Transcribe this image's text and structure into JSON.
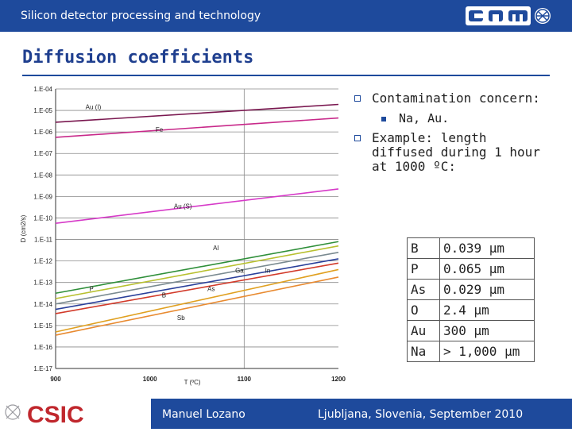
{
  "header": {
    "title": "Silicon detector processing and technology",
    "logo": "CNM"
  },
  "slide": {
    "title": "Diffusion coefficients"
  },
  "bullets": {
    "b1": "Contamination concern:",
    "b1_sub": "Na, Au.",
    "b2_lines": [
      "Example: length",
      "diffused during 1 hour",
      "at 1000 ºC:"
    ]
  },
  "table": [
    {
      "element": "B",
      "value": "0.039 µm"
    },
    {
      "element": "P",
      "value": "0.065 µm"
    },
    {
      "element": "As",
      "value": "0.029 µm"
    },
    {
      "element": "O",
      "value": "2.4 µm"
    },
    {
      "element": "Au",
      "value": "300 µm"
    },
    {
      "element": "Na",
      "value": "> 1,000 µm"
    }
  ],
  "footer": {
    "logo": "CSIC",
    "presenter": "Manuel Lozano",
    "place": "Ljubljana, Slovenia, September 2010"
  },
  "colors": {
    "brand_blue": "#1e4a9c",
    "csic_red": "#c0272d"
  },
  "chart_data": {
    "type": "line",
    "xlabel": "T (ºC)",
    "ylabel": "D (cm2/s)",
    "x_ticks": [
      900,
      1000,
      1100,
      1200
    ],
    "x_tick_labels": [
      "900",
      "1000",
      "1100",
      "1200"
    ],
    "y_tick_labels": [
      "1.E-04",
      "1.E-05",
      "1.E-06",
      "1.E-07",
      "1.E-08",
      "1.E-09",
      "1.E-10",
      "1.E-11",
      "1.E-12",
      "1.E-13",
      "1.E-14",
      "1.E-15",
      "1.E-16",
      "1.E-17"
    ],
    "y_log_exponents": [
      -4,
      -5,
      -6,
      -7,
      -8,
      -9,
      -10,
      -11,
      -12,
      -13,
      -14,
      -15,
      -16,
      -17
    ],
    "xlim": [
      900,
      1200
    ],
    "ylim_log": [
      -17,
      -4
    ],
    "series": [
      {
        "name": "Au (I)",
        "x": [
          900,
          1200
        ],
        "y_log": [
          -5.55,
          -4.72
        ],
        "color": "#7a1850"
      },
      {
        "name": "Fe",
        "x": [
          900,
          1200
        ],
        "y_log": [
          -6.25,
          -5.35
        ],
        "color": "#c8298a"
      },
      {
        "name": "Au (S)",
        "x": [
          900,
          1200
        ],
        "y_log": [
          -10.25,
          -8.65
        ],
        "color": "#d63ac8"
      },
      {
        "name": "Al",
        "x": [
          900,
          1200
        ],
        "y_log": [
          -13.5,
          -11.1
        ],
        "color": "#2f8f3a"
      },
      {
        "name": "Ga",
        "x": [
          900,
          1200
        ],
        "y_log": [
          -13.75,
          -11.3
        ],
        "color": "#b8c030"
      },
      {
        "name": "In",
        "x": [
          900,
          1200
        ],
        "y_log": [
          -14.0,
          -11.6
        ],
        "color": "#7a8a90"
      },
      {
        "name": "P",
        "x": [
          900,
          1200
        ],
        "y_log": [
          -14.25,
          -11.9
        ],
        "color": "#2a3f9a"
      },
      {
        "name": "B",
        "x": [
          900,
          1200
        ],
        "y_log": [
          -14.45,
          -12.1
        ],
        "color": "#d23a2a"
      },
      {
        "name": "As",
        "x": [
          900,
          1200
        ],
        "y_log": [
          -15.3,
          -12.4
        ],
        "color": "#e0a020"
      },
      {
        "name": "Sb",
        "x": [
          900,
          1200
        ],
        "y_log": [
          -15.45,
          -12.75
        ],
        "color": "#e88a30"
      }
    ],
    "labels": [
      {
        "text": "Au (I)",
        "x": 940,
        "y_log": -4.95
      },
      {
        "text": "Fe",
        "x": 1010,
        "y_log": -6.0
      },
      {
        "text": "Au (S)",
        "x": 1035,
        "y_log": -9.55
      },
      {
        "text": "Al",
        "x": 1070,
        "y_log": -11.5
      },
      {
        "text": "Ga",
        "x": 1095,
        "y_log": -12.55
      },
      {
        "text": "In",
        "x": 1125,
        "y_log": -12.55
      },
      {
        "text": "As",
        "x": 1065,
        "y_log": -13.4
      },
      {
        "text": "P",
        "x": 938,
        "y_log": -13.4
      },
      {
        "text": "B",
        "x": 1015,
        "y_log": -13.7
      },
      {
        "text": "Sb",
        "x": 1033,
        "y_log": -14.75
      }
    ],
    "grid": "vertical-at-1100",
    "legend": "inline-labels"
  }
}
